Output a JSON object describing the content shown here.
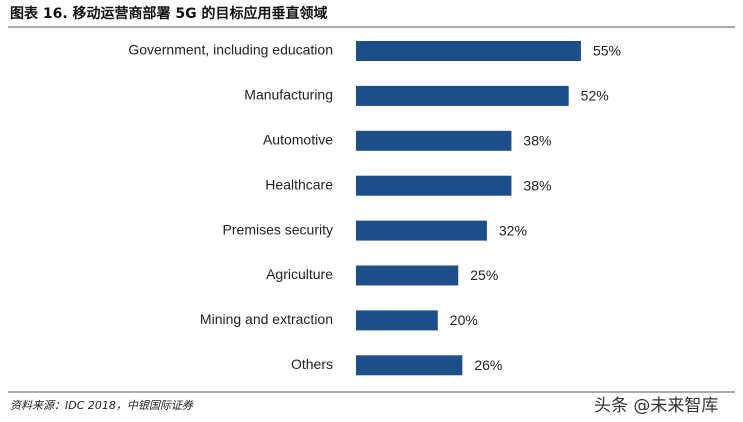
{
  "chart_data": {
    "type": "bar",
    "orientation": "horizontal",
    "title": "图表 16. 移动运营商部署 5G 的目标应用垂直领域",
    "categories": [
      "Government, including education",
      "Manufacturing",
      "Automotive",
      "Healthcare",
      "Premises security",
      "Agriculture",
      "Mining and extraction",
      "Others"
    ],
    "values": [
      55,
      52,
      38,
      38,
      32,
      25,
      20,
      26
    ],
    "value_labels": [
      "55%",
      "52%",
      "38%",
      "38%",
      "32%",
      "25%",
      "20%",
      "26%"
    ],
    "color": "#1c4e89",
    "source": "资料来源：IDC 2018，中银国际证券",
    "watermark": "头条 @未来智库"
  }
}
